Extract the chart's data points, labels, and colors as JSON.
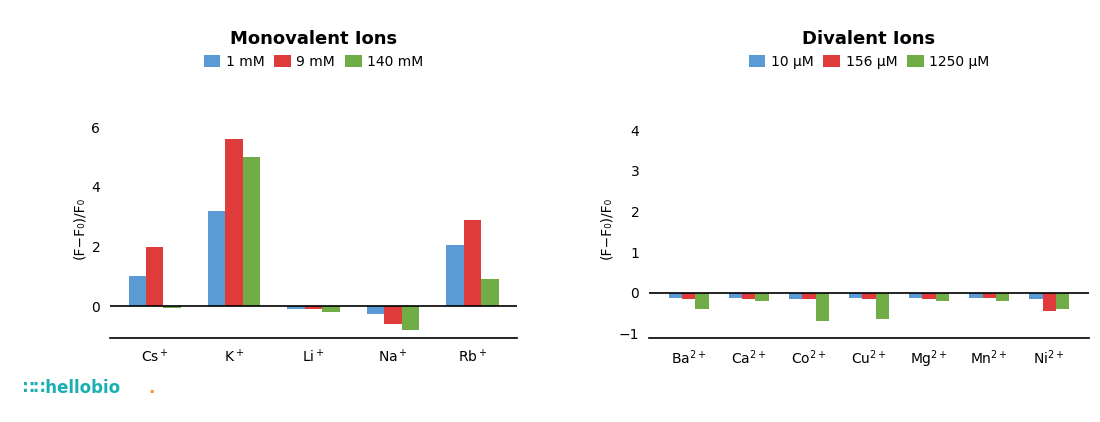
{
  "mono_title": "Monovalent Ions",
  "div_title": "Divalent Ions",
  "mono_categories": [
    "Cs$^+$",
    "K$^+$",
    "Li$^+$",
    "Na$^+$",
    "Rb$^+$"
  ],
  "div_categories": [
    "Ba$^{2+}$",
    "Ca$^{2+}$",
    "Co$^{2+}$",
    "Cu$^{2+}$",
    "Mg$^{2+}$",
    "Mn$^{2+}$",
    "Ni$^{2+}$"
  ],
  "mono_legend": [
    "1 mM",
    "9 mM",
    "140 mM"
  ],
  "div_legend": [
    "10 μM",
    "156 μM",
    "1250 μM"
  ],
  "mono_data": {
    "blue": [
      1.0,
      3.2,
      -0.1,
      -0.25,
      2.05
    ],
    "red": [
      2.0,
      5.6,
      -0.1,
      -0.6,
      2.9
    ],
    "green": [
      -0.05,
      5.0,
      -0.2,
      -0.8,
      0.9
    ]
  },
  "div_data": {
    "blue": [
      -0.12,
      -0.12,
      -0.15,
      -0.12,
      -0.12,
      -0.13,
      -0.15
    ],
    "red": [
      -0.15,
      -0.15,
      -0.15,
      -0.15,
      -0.15,
      -0.13,
      -0.45
    ],
    "green": [
      -0.4,
      -0.2,
      -0.7,
      -0.65,
      -0.2,
      -0.2,
      -0.4
    ]
  },
  "bar_colors": [
    "#5B9BD5",
    "#E03B3B",
    "#70AD47"
  ],
  "mono_ylim": [
    -1.05,
    6.3
  ],
  "mono_yticks": [
    0,
    2,
    4,
    6
  ],
  "div_ylim": [
    -1.1,
    4.3
  ],
  "div_yticks": [
    -1,
    0,
    1,
    2,
    3,
    4
  ],
  "ylabel": "(F−F₀)/F₀",
  "title_fontsize": 13,
  "label_fontsize": 10,
  "tick_fontsize": 10,
  "bar_width": 0.22,
  "background_color": "#ffffff",
  "hellobio_teal": "#1AAFB0",
  "hellobio_orange": "#F7941D"
}
